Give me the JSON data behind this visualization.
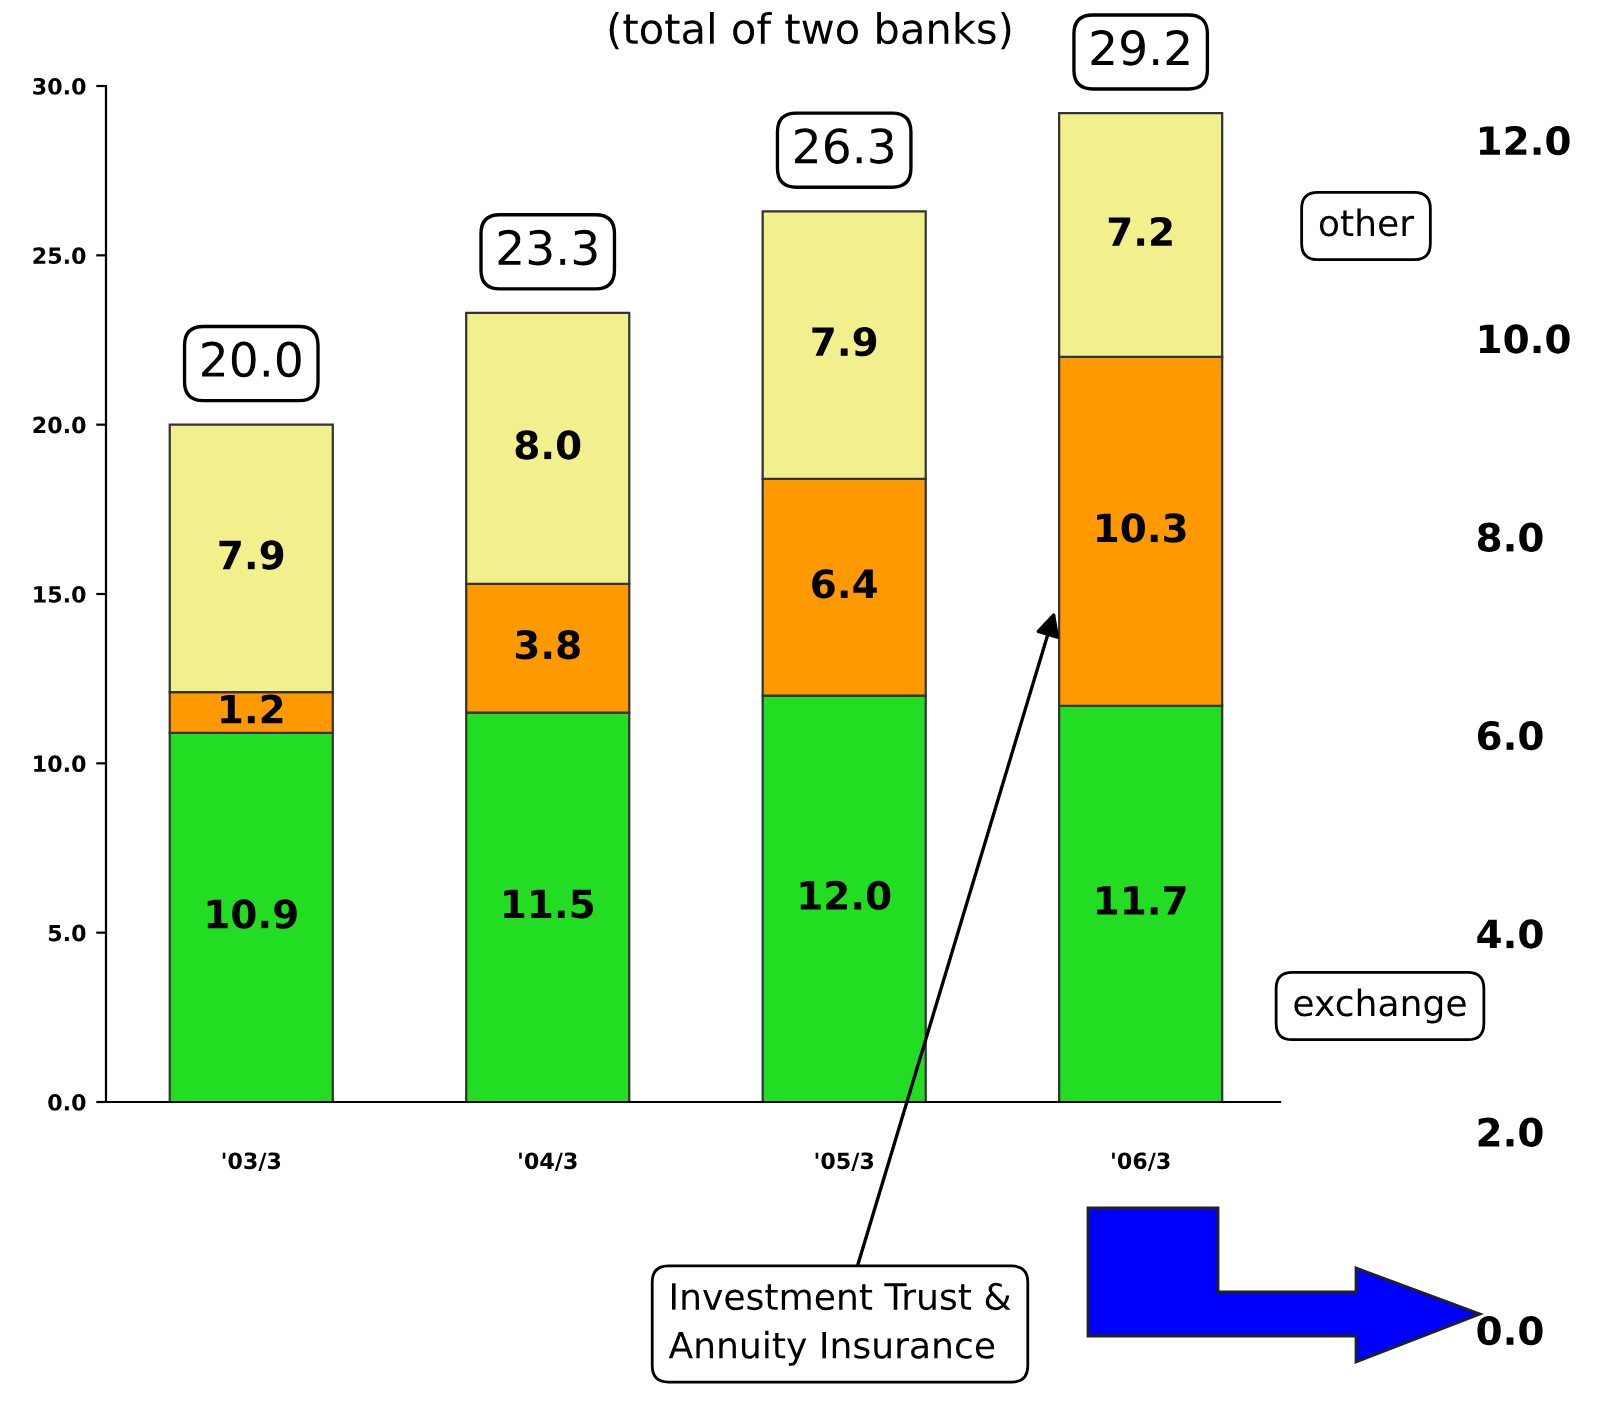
{
  "chart_data": {
    "type": "bar",
    "stacked": true,
    "title": "(total of two banks)",
    "categories": [
      "'03/3",
      "'04/3",
      "'05/3",
      "'06/3"
    ],
    "series": [
      {
        "name": "exchange",
        "color": "#22dd22",
        "values": [
          10.9,
          11.5,
          12.0,
          11.7
        ],
        "value_labels": [
          "10.9",
          "11.5",
          "12.0",
          "11.7"
        ]
      },
      {
        "name": "Investment Trust &\nAnnuity Insurance",
        "color": "#ff9900",
        "values": [
          1.2,
          3.8,
          6.4,
          10.3
        ]
      },
      {
        "name": "other",
        "color": "#f2f08c",
        "values": [
          7.9,
          8.0,
          7.9,
          7.2
        ],
        "value_labels": [
          "7.9",
          "8.0",
          "7.9",
          "7.2"
        ]
      }
    ],
    "ylim": [
      0,
      30
    ],
    "yticks": [
      {
        "value": 0,
        "label": "0.0"
      },
      {
        "value": 5,
        "label": "5.0"
      },
      {
        "value": 10,
        "label": "10.0"
      },
      {
        "value": 15,
        "label": "15.0"
      },
      {
        "value": 20,
        "label": "20.0"
      },
      {
        "value": 25,
        "label": "25.0"
      },
      {
        "value": 30,
        "label": "30.0"
      }
    ],
    "y2lim": [
      0,
      12
    ],
    "y2ticks": [
      {
        "value": 0,
        "label": "0.0"
      },
      {
        "value": 2,
        "label": "2.0"
      },
      {
        "value": 4,
        "label": "4.0"
      },
      {
        "value": 6,
        "label": "6.0"
      },
      {
        "value": 8,
        "label": "8.0"
      },
      {
        "value": 10,
        "label": "10.0"
      },
      {
        "value": 12,
        "label": "12.0"
      }
    ],
    "data_labels": true,
    "totals": [
      "20.0",
      "23.3",
      "26.3",
      "29.2"
    ],
    "grid": false,
    "legend": false
  }
}
